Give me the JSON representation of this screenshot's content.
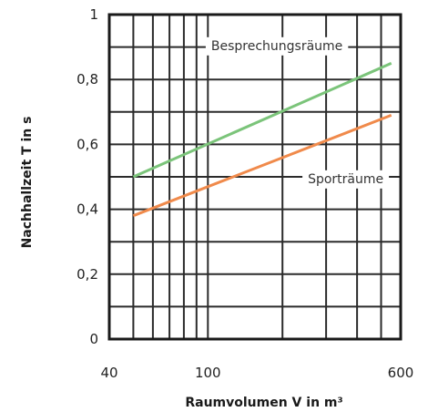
{
  "chart_data": {
    "type": "line",
    "xlabel": "Raumvolumen V in m³",
    "ylabel": "Nachhallzeit T in s",
    "x_scale": "log",
    "xlim": [
      40,
      600
    ],
    "ylim": [
      0,
      1
    ],
    "x_ticks": [
      "40",
      "100",
      "600"
    ],
    "y_ticks": [
      "0",
      "0,2",
      "0,4",
      "0,6",
      "0,8",
      "1"
    ],
    "grid": true,
    "series": [
      {
        "name": "Besprechungsräume",
        "color": "#7bc47a",
        "x": [
          50,
          550
        ],
        "y": [
          0.5,
          0.85
        ]
      },
      {
        "name": "Sporträume",
        "color": "#f08a4b",
        "x": [
          50,
          550
        ],
        "y": [
          0.38,
          0.69
        ]
      }
    ]
  }
}
